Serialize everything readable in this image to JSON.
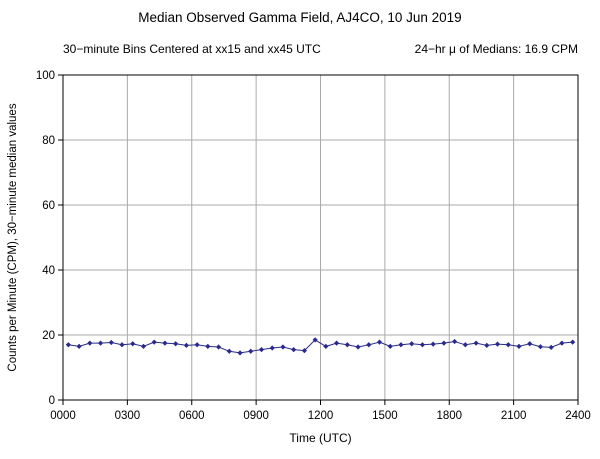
{
  "header": {
    "title": "Median Observed Gamma Field, AJ4CO, 10 Jun 2019",
    "subtitle_left": "30−minute Bins Centered at xx15 and xx45 UTC",
    "subtitle_right": "24−hr μ of Medians: 16.9 CPM"
  },
  "chart_data": {
    "type": "line",
    "title": "Median Observed Gamma Field, AJ4CO, 10 Jun 2019",
    "xlabel": "Time (UTC)",
    "ylabel": "Counts per Minute (CPM), 30−minute median values",
    "xlim": [
      0,
      24
    ],
    "ylim": [
      0,
      100
    ],
    "xtick_values": [
      0,
      3,
      6,
      9,
      12,
      15,
      18,
      21,
      24
    ],
    "xtick_labels": [
      "0000",
      "0300",
      "0600",
      "0900",
      "1200",
      "1500",
      "1800",
      "2100",
      "2400"
    ],
    "ytick_values": [
      0,
      20,
      40,
      60,
      80,
      100
    ],
    "ytick_labels": [
      "0",
      "20",
      "40",
      "60",
      "80",
      "100"
    ],
    "grid": true,
    "grid_color": "#aaaaaa",
    "line_color": "#2a2a8c",
    "marker": "diamond",
    "mean_of_medians_cpm": 16.9,
    "x_hours": [
      0.25,
      0.75,
      1.25,
      1.75,
      2.25,
      2.75,
      3.25,
      3.75,
      4.25,
      4.75,
      5.25,
      5.75,
      6.25,
      6.75,
      7.25,
      7.75,
      8.25,
      8.75,
      9.25,
      9.75,
      10.25,
      10.75,
      11.25,
      11.75,
      12.25,
      12.75,
      13.25,
      13.75,
      14.25,
      14.75,
      15.25,
      15.75,
      16.25,
      16.75,
      17.25,
      17.75,
      18.25,
      18.75,
      19.25,
      19.75,
      20.25,
      20.75,
      21.25,
      21.75,
      22.25,
      22.75,
      23.25,
      23.75
    ],
    "values": [
      17.0,
      16.5,
      17.5,
      17.5,
      17.7,
      17.0,
      17.3,
      16.5,
      17.8,
      17.5,
      17.3,
      16.8,
      17.0,
      16.5,
      16.3,
      15.0,
      14.5,
      15.0,
      15.5,
      16.0,
      16.3,
      15.5,
      15.2,
      18.5,
      16.5,
      17.5,
      17.0,
      16.3,
      17.0,
      17.8,
      16.5,
      17.0,
      17.3,
      17.0,
      17.2,
      17.5,
      18.0,
      17.0,
      17.5,
      16.8,
      17.2,
      17.0,
      16.5,
      17.3,
      16.4,
      16.2,
      17.5,
      17.8
    ]
  }
}
